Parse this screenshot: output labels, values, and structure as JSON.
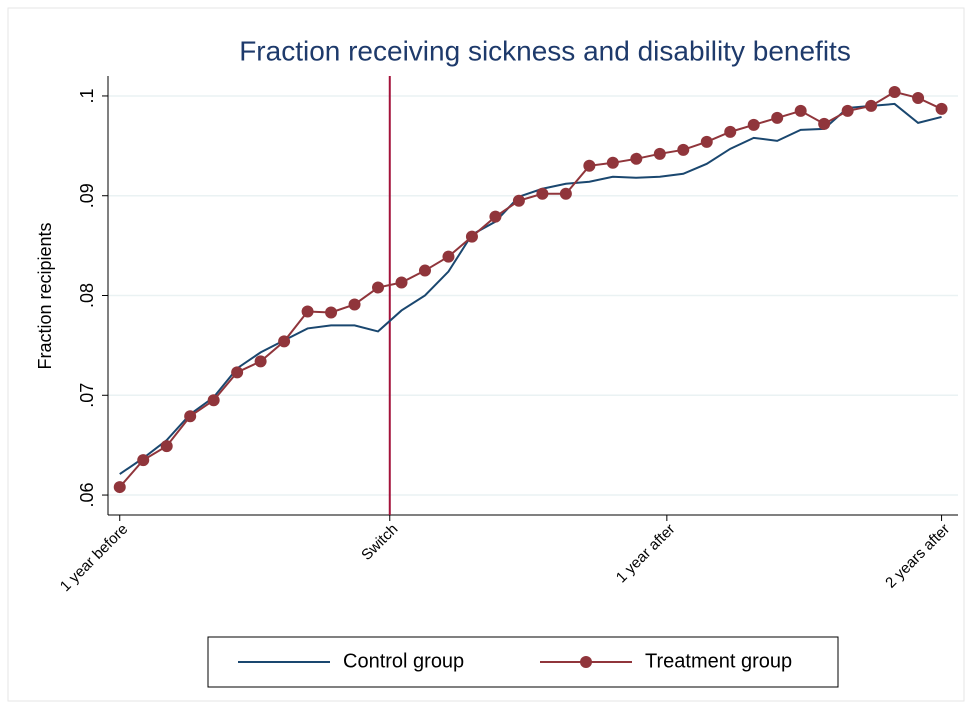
{
  "chart_data": {
    "type": "line",
    "title": "Fraction receiving sickness and disability benefits",
    "y_label": "Fraction recipients",
    "x": [
      -12,
      -11,
      -10,
      -9,
      -8,
      -7,
      -6,
      -5,
      -4,
      -3,
      -2,
      -1,
      0,
      1,
      2,
      3,
      4,
      5,
      6,
      7,
      8,
      9,
      10,
      11,
      12,
      13,
      14,
      15,
      16,
      17,
      18,
      19,
      20,
      21,
      22,
      23
    ],
    "series": [
      {
        "name": "Control group",
        "color": "#1a476f",
        "marker": false,
        "values": [
          0.0621,
          0.0637,
          0.0655,
          0.0681,
          0.0698,
          0.0727,
          0.0743,
          0.0755,
          0.0767,
          0.077,
          0.077,
          0.0764,
          0.0785,
          0.08,
          0.0824,
          0.0861,
          0.0874,
          0.0899,
          0.0907,
          0.0912,
          0.0914,
          0.0919,
          0.0918,
          0.0919,
          0.0922,
          0.0932,
          0.0947,
          0.0958,
          0.0955,
          0.0966,
          0.0967,
          0.0988,
          0.099,
          0.0992,
          0.0973,
          0.0979
        ]
      },
      {
        "name": "Treatment group",
        "color": "#90353b",
        "marker": true,
        "values": [
          0.0608,
          0.0635,
          0.0649,
          0.0679,
          0.0695,
          0.0723,
          0.0734,
          0.0754,
          0.0784,
          0.0783,
          0.0791,
          0.0808,
          0.0813,
          0.0825,
          0.0839,
          0.0859,
          0.0879,
          0.0895,
          0.0902,
          0.0902,
          0.093,
          0.0933,
          0.0937,
          0.0942,
          0.0946,
          0.0954,
          0.0964,
          0.0971,
          0.0978,
          0.0985,
          0.0972,
          0.0985,
          0.099,
          0.1004,
          0.0998,
          0.0987
        ]
      }
    ],
    "vline": -0.5,
    "vline_color": "#a3123a",
    "xlim": [
      -12.5,
      23.7
    ],
    "xticks": [
      {
        "value": -12,
        "label": "1 year before"
      },
      {
        "value": -0.5,
        "label": "Switch"
      },
      {
        "value": 11.3,
        "label": "1 year after"
      },
      {
        "value": 23,
        "label": "2 years after"
      }
    ],
    "ylim": [
      0.058,
      0.102
    ],
    "yticks": [
      {
        "value": 0.06,
        "label": ".06"
      },
      {
        "value": 0.07,
        "label": ".07"
      },
      {
        "value": 0.08,
        "label": ".08"
      },
      {
        "value": 0.09,
        "label": ".09"
      },
      {
        "value": 0.1,
        "label": ".1"
      }
    ],
    "grid": true,
    "legend": "bottom"
  }
}
